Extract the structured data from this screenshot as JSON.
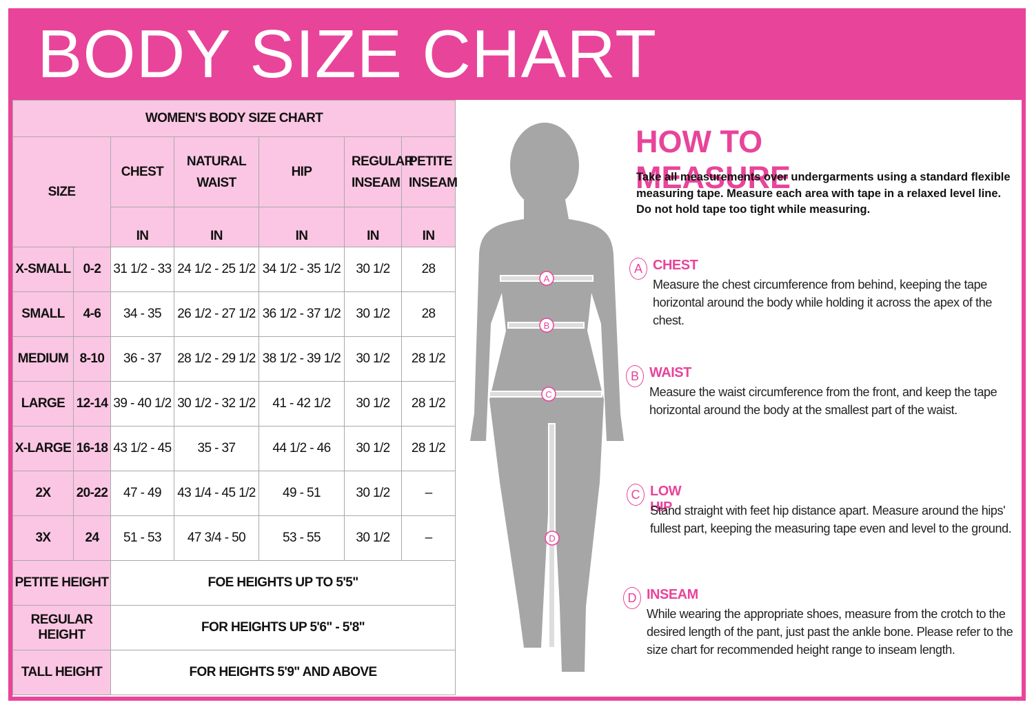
{
  "header": {
    "title": "BODY SIZE CHART"
  },
  "table": {
    "title": "WOMEN'S BODY SIZE CHART",
    "size_heading": "SIZE",
    "columns": [
      "CHEST",
      "NATURAL WAIST",
      "HIP",
      "REGULAR INSEAM",
      "PETITE INSEAM"
    ],
    "units": [
      "IN",
      "IN",
      "IN",
      "IN",
      "IN"
    ],
    "rows": [
      [
        "X-SMALL",
        "0-2",
        "31 1/2 - 33",
        "24 1/2 - 25 1/2",
        "34 1/2 - 35 1/2",
        "30 1/2",
        "28"
      ],
      [
        "SMALL",
        "4-6",
        "34 - 35",
        "26 1/2 - 27 1/2",
        "36 1/2 - 37 1/2",
        "30 1/2",
        "28"
      ],
      [
        "MEDIUM",
        "8-10",
        "36 - 37",
        "28 1/2 - 29 1/2",
        "38 1/2 - 39 1/2",
        "30 1/2",
        "28 1/2"
      ],
      [
        "LARGE",
        "12-14",
        "39 - 40 1/2",
        "30 1/2 - 32 1/2",
        "41 - 42 1/2",
        "30 1/2",
        "28 1/2"
      ],
      [
        "X-LARGE",
        "16-18",
        "43 1/2 - 45",
        "35 - 37",
        "44 1/2 - 46",
        "30 1/2",
        "28 1/2"
      ],
      [
        "2X",
        "20-22",
        "47 - 49",
        "43 1/4 - 45 1/2",
        "49 - 51",
        "30 1/2",
        "–"
      ],
      [
        "3X",
        "24",
        "51 - 53",
        "47 3/4 - 50",
        "53 - 55",
        "30 1/2",
        "–"
      ]
    ],
    "height_rows": [
      [
        "PETITE HEIGHT",
        "FOE HEIGHTS UP TO 5'5\""
      ],
      [
        "REGULAR HEIGHT",
        "FOR HEIGHTS UP 5'6\" - 5'8\""
      ],
      [
        "TALL HEIGHT",
        "FOR HEIGHTS 5'9\" AND ABOVE"
      ]
    ]
  },
  "guide": {
    "title": "HOW TO MEASURE",
    "intro": "Take all measurements over undergarments using a standard flexible measuring tape. Measure each area with tape in a relaxed level line. Do not hold tape too tight while measuring.",
    "figure_markers": [
      "A",
      "B",
      "C",
      "D"
    ],
    "steps": [
      {
        "letter": "A",
        "name": "CHEST",
        "text": "Measure the chest circumference from behind, keeping the tape horizontal around the body while holding it across the apex of the chest."
      },
      {
        "letter": "B",
        "name": "WAIST",
        "text": "Measure the waist circumference from the front, and keep the tape horizontal around the body at the smallest part of the waist."
      },
      {
        "letter": "C",
        "name": "LOW HIP",
        "text": "Stand straight with feet hip distance apart. Measure around the hips' fullest part, keeping the measuring tape even and level to the ground."
      },
      {
        "letter": "D",
        "name": "INSEAM",
        "text": "While wearing the appropriate shoes, measure from the crotch to the desired length of the pant, just past the ankle bone. Please refer to the size chart for recommended height range to inseam length."
      }
    ]
  }
}
